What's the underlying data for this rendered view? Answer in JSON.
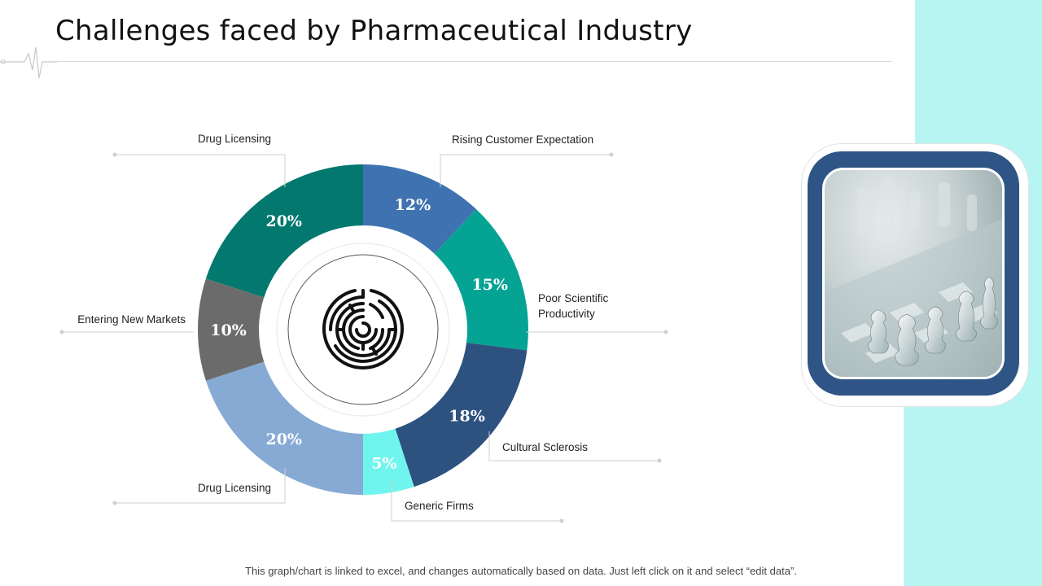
{
  "title": "Challenges faced by Pharmaceutical Industry",
  "footer": "This graph/chart is linked to excel, and changes automatically based on data. Just left click on it and select “edit data”.",
  "icons": {
    "center": "maze-icon",
    "header": "pulse-line-icon",
    "photo": "chess-pieces-image"
  },
  "chart_data": {
    "type": "pie",
    "subtype": "donut",
    "title": "",
    "slices": [
      {
        "label": "Rising Customer Expectation",
        "value": 12,
        "display": "12%",
        "color": "#3f72b0"
      },
      {
        "label": "Poor Scientific Productivity",
        "value": 15,
        "display": "15%",
        "color": "#05a393"
      },
      {
        "label": "Cultural Sclerosis",
        "value": 18,
        "display": "18%",
        "color": "#2d527f"
      },
      {
        "label": "Generic Firms",
        "value": 5,
        "display": "5%",
        "color": "#6ff5ee"
      },
      {
        "label": "Drug Licensing",
        "value": 20,
        "display": "20%",
        "color": "#87aad4"
      },
      {
        "label": "Entering New Markets",
        "value": 10,
        "display": "10%",
        "color": "#6b6b6b"
      },
      {
        "label": "Drug Licensing",
        "value": 20,
        "display": "20%",
        "color": "#03786e"
      }
    ]
  }
}
